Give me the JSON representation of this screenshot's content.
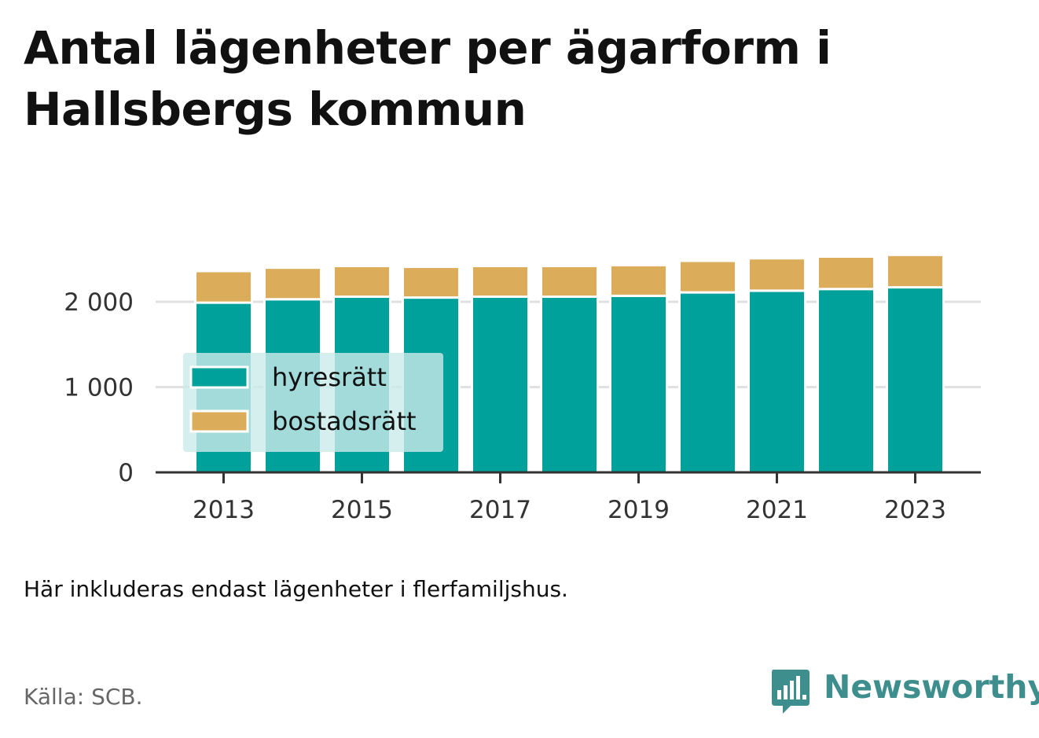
{
  "title": "Antal lägenheter per ägarform i Hallsbergs kommun",
  "caption": "Här inkluderas endast lägenheter i flerfamiljshus.",
  "source": "Källa: SCB.",
  "brand": {
    "name": "Newsworthy",
    "icon": "newsworthy-bars-icon",
    "color": "#3f8e8e"
  },
  "colors": {
    "hyresratt": "#00a19a",
    "bostadsratt": "#dbad5b",
    "axis": "#333333",
    "grid": "#e0e0e0",
    "legend_bg": "#cbeaea"
  },
  "chart_data": {
    "type": "bar",
    "stacked": true,
    "categories": [
      "2013",
      "2014",
      "2015",
      "2016",
      "2017",
      "2018",
      "2019",
      "2020",
      "2021",
      "2022",
      "2023"
    ],
    "series": [
      {
        "name": "hyresrätt",
        "color": "#00a19a",
        "values": [
          1990,
          2030,
          2060,
          2050,
          2060,
          2060,
          2070,
          2110,
          2130,
          2150,
          2170
        ]
      },
      {
        "name": "bostadsrätt",
        "color": "#dbad5b",
        "values": [
          370,
          370,
          360,
          360,
          360,
          360,
          360,
          370,
          380,
          380,
          380
        ]
      }
    ],
    "xticks": [
      "2013",
      "2015",
      "2017",
      "2019",
      "2021",
      "2023"
    ],
    "yticks": [
      0,
      1000,
      2000
    ],
    "ytick_labels": [
      "0",
      "1 000",
      "2 000"
    ],
    "ylim": [
      0,
      2600
    ],
    "grid": true,
    "legend_position": "center-left"
  }
}
